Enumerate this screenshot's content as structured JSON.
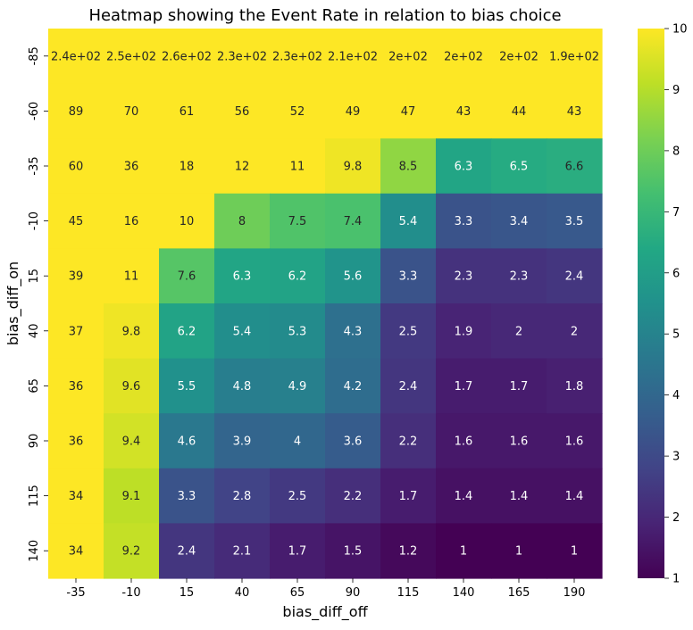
{
  "chart_data": {
    "type": "heatmap",
    "title": "Heatmap showing the Event Rate in relation to bias choice",
    "xlabel": "bias_diff_off",
    "ylabel": "bias_diff_on",
    "x_categories": [
      "-35",
      "-10",
      "15",
      "40",
      "65",
      "90",
      "115",
      "140",
      "165",
      "190"
    ],
    "y_categories": [
      "-85",
      "-60",
      "-35",
      "-10",
      "15",
      "40",
      "65",
      "90",
      "115",
      "140"
    ],
    "values": [
      [
        240,
        250,
        260,
        230,
        230,
        210,
        200,
        200,
        200,
        190
      ],
      [
        89,
        70,
        61,
        56,
        52,
        49,
        47,
        43,
        44,
        43
      ],
      [
        60,
        36,
        18,
        12,
        11,
        9.8,
        8.5,
        6.3,
        6.5,
        6.6
      ],
      [
        45,
        16,
        10,
        8,
        7.5,
        7.4,
        5.4,
        3.3,
        3.4,
        3.5
      ],
      [
        39,
        11,
        7.6,
        6.3,
        6.2,
        5.6,
        3.3,
        2.3,
        2.3,
        2.4
      ],
      [
        37,
        9.8,
        6.2,
        5.4,
        5.3,
        4.3,
        2.5,
        1.9,
        2,
        2
      ],
      [
        36,
        9.6,
        5.5,
        4.8,
        4.9,
        4.2,
        2.4,
        1.7,
        1.7,
        1.8
      ],
      [
        36,
        9.4,
        4.6,
        3.9,
        4,
        3.6,
        2.2,
        1.6,
        1.6,
        1.6
      ],
      [
        34,
        9.1,
        3.3,
        2.8,
        2.5,
        2.2,
        1.7,
        1.4,
        1.4,
        1.4
      ],
      [
        34,
        9.2,
        2.4,
        2.1,
        1.7,
        1.5,
        1.2,
        1,
        1,
        1
      ]
    ],
    "labels": [
      [
        "2.4e+02",
        "2.5e+02",
        "2.6e+02",
        "2.3e+02",
        "2.3e+02",
        "2.1e+02",
        "2e+02",
        "2e+02",
        "2e+02",
        "1.9e+02"
      ],
      [
        "89",
        "70",
        "61",
        "56",
        "52",
        "49",
        "47",
        "43",
        "44",
        "43"
      ],
      [
        "60",
        "36",
        "18",
        "12",
        "11",
        "9.8",
        "8.5",
        "6.3",
        "6.5",
        "6.6"
      ],
      [
        "45",
        "16",
        "10",
        "8",
        "7.5",
        "7.4",
        "5.4",
        "3.3",
        "3.4",
        "3.5"
      ],
      [
        "39",
        "11",
        "7.6",
        "6.3",
        "6.2",
        "5.6",
        "3.3",
        "2.3",
        "2.3",
        "2.4"
      ],
      [
        "37",
        "9.8",
        "6.2",
        "5.4",
        "5.3",
        "4.3",
        "2.5",
        "1.9",
        "2",
        "2"
      ],
      [
        "36",
        "9.6",
        "5.5",
        "4.8",
        "4.9",
        "4.2",
        "2.4",
        "1.7",
        "1.7",
        "1.8"
      ],
      [
        "36",
        "9.4",
        "4.6",
        "3.9",
        "4",
        "3.6",
        "2.2",
        "1.6",
        "1.6",
        "1.6"
      ],
      [
        "34",
        "9.1",
        "3.3",
        "2.8",
        "2.5",
        "2.2",
        "1.7",
        "1.4",
        "1.4",
        "1.4"
      ],
      [
        "34",
        "9.2",
        "2.4",
        "2.1",
        "1.7",
        "1.5",
        "1.2",
        "1",
        "1",
        "1"
      ]
    ],
    "colorbar": {
      "min": 1,
      "max": 10,
      "ticks": [
        "1",
        "2",
        "3",
        "4",
        "5",
        "6",
        "7",
        "8",
        "9",
        "10"
      ],
      "colormap": "viridis"
    },
    "grid": false
  }
}
